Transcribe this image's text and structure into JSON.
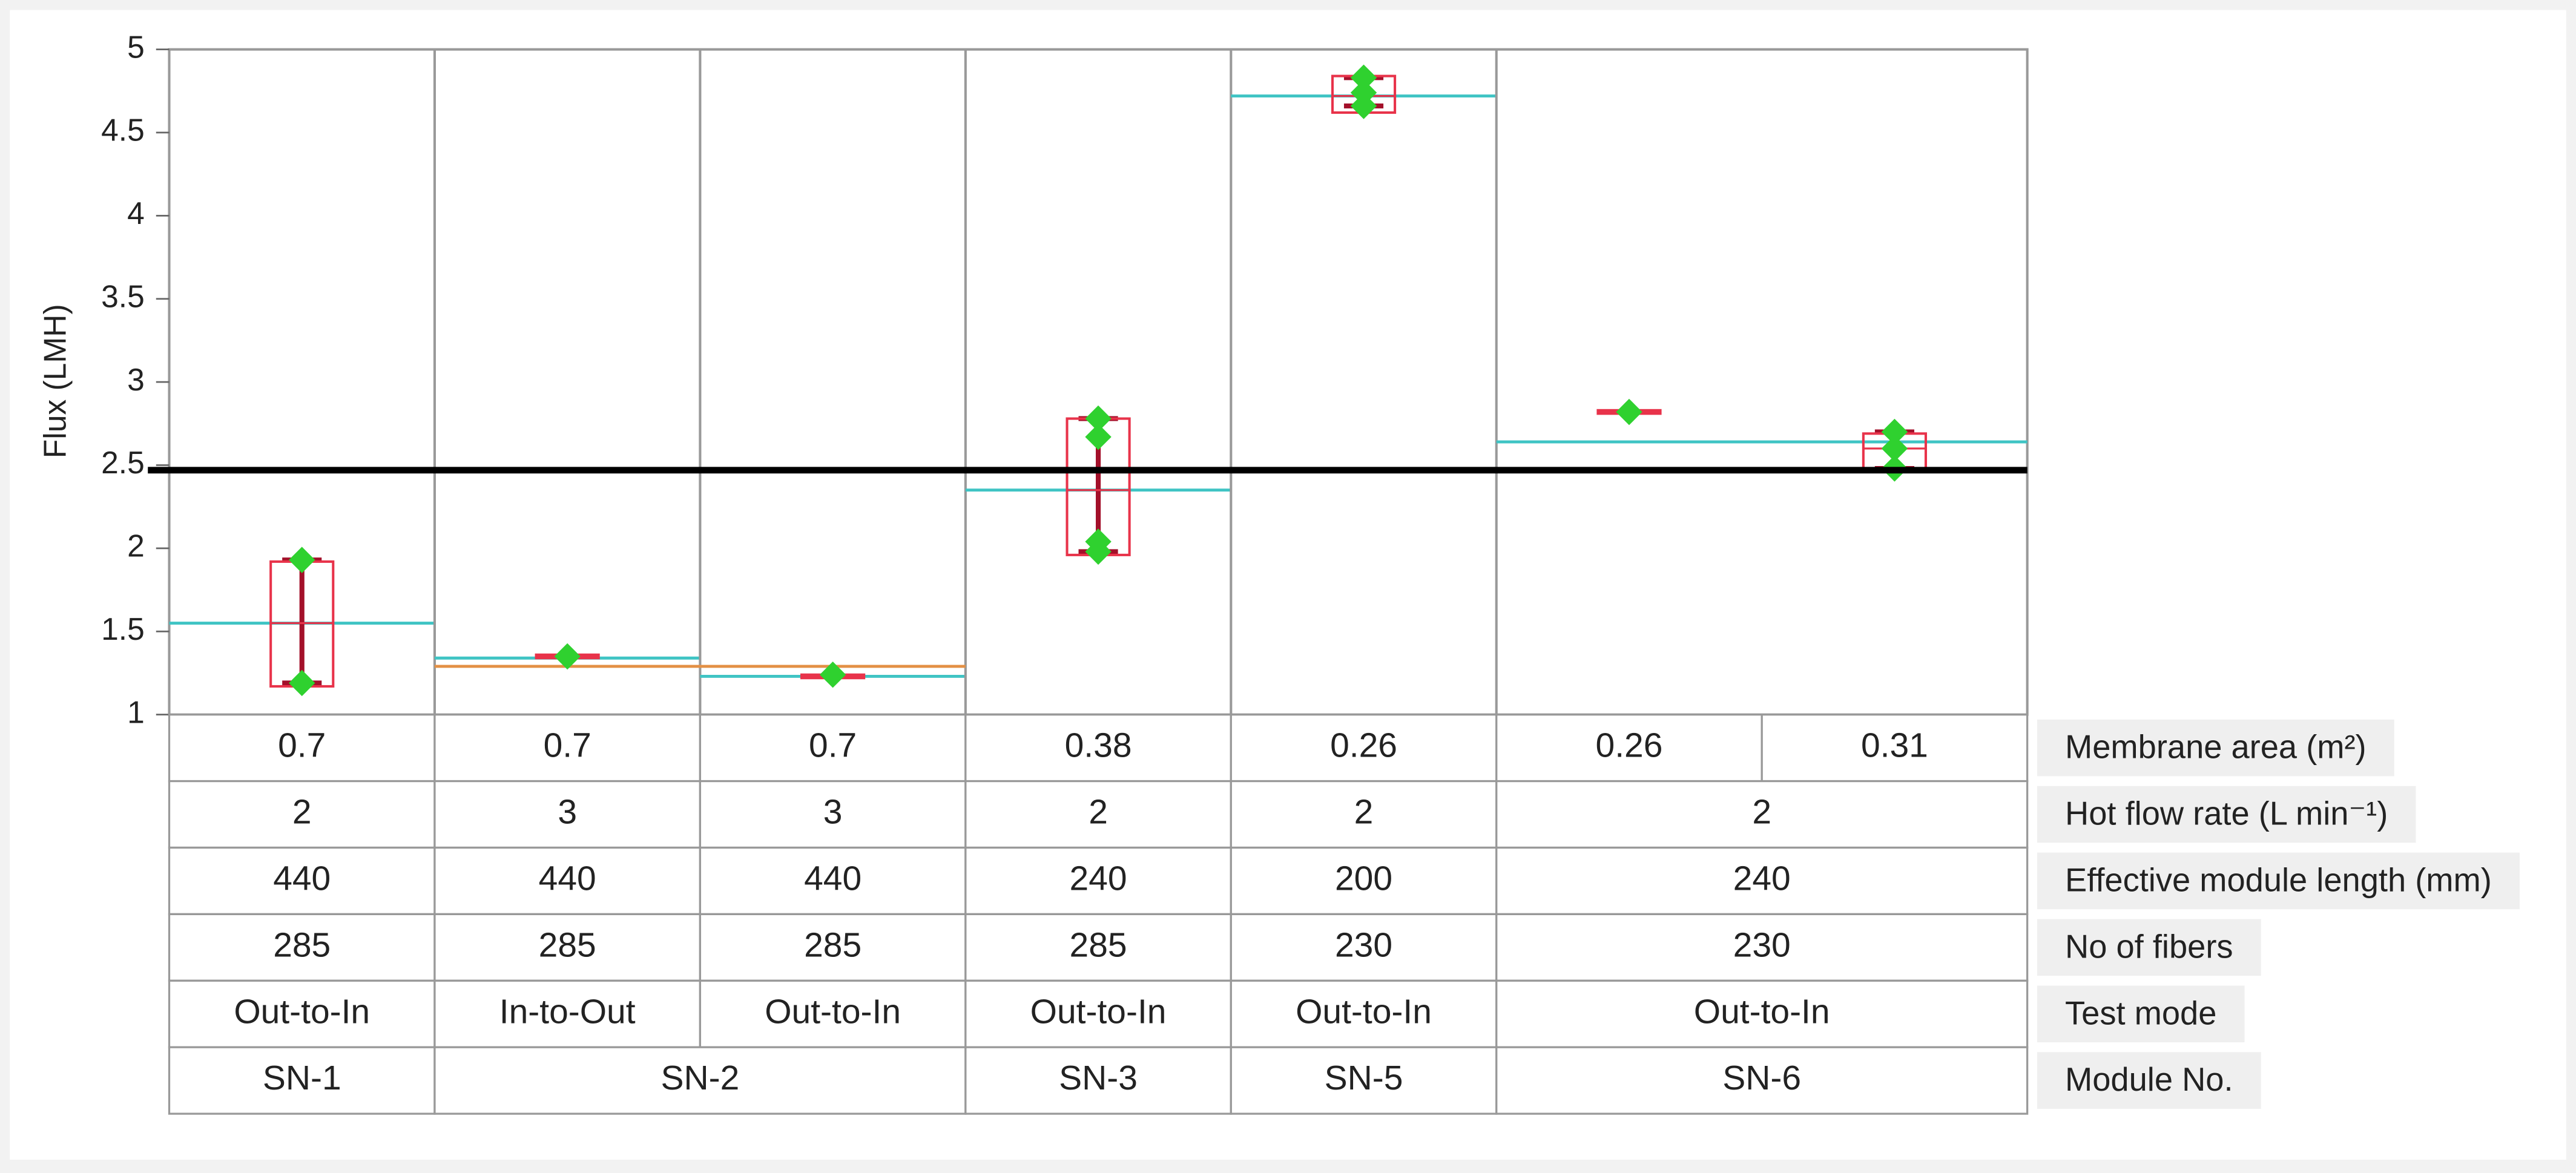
{
  "chart_data": {
    "type": "box",
    "y_label": "Flux (LMH)",
    "ylim": [
      1,
      5
    ],
    "yticks": [
      1,
      1.5,
      2,
      2.5,
      3,
      3.5,
      4,
      4.5,
      5
    ],
    "reference_line": 2.47,
    "box_color": "#e8334a",
    "whisker_color": "#a3102a",
    "point_color": "#2fd12f",
    "mean_color": "#3fc4c4",
    "group_mean_color": "#e39045",
    "boxes": [
      {
        "q1": 1.17,
        "median": 1.55,
        "q3": 1.92,
        "points": [
          1.93,
          1.19
        ]
      },
      {
        "q1": 1.34,
        "median": 1.35,
        "q3": 1.36,
        "points": [
          1.35
        ]
      },
      {
        "q1": 1.22,
        "median": 1.23,
        "q3": 1.24,
        "points": [
          1.24
        ]
      },
      {
        "q1": 1.96,
        "median": 2.35,
        "q3": 2.78,
        "points": [
          2.78,
          2.67,
          2.04,
          1.98
        ]
      },
      {
        "q1": 4.62,
        "median": 4.72,
        "q3": 4.84,
        "points": [
          4.83,
          4.74,
          4.66
        ]
      },
      {
        "q1": 2.81,
        "median": 2.82,
        "q3": 2.83,
        "points": [
          2.82
        ]
      },
      {
        "q1": 2.48,
        "median": 2.6,
        "q3": 2.69,
        "points": [
          2.7,
          2.6,
          2.48
        ]
      }
    ],
    "panels": [
      {
        "columns": 1,
        "mean": 1.55
      },
      {
        "columns": 1,
        "mean": 1.34
      },
      {
        "columns": 1,
        "mean": 1.23
      },
      {
        "columns": 1,
        "mean": 2.35
      },
      {
        "columns": 1,
        "mean": 4.72
      },
      {
        "columns": 2,
        "mean": 2.64
      }
    ],
    "group_means": [
      {
        "start": 1,
        "columns": 2,
        "value": 1.29
      }
    ],
    "table": [
      {
        "label": "Membrane area (m²)",
        "cells": [
          "0.7",
          "0.7",
          "0.7",
          "0.38",
          "0.26",
          "0.26",
          "0.31"
        ],
        "spans": [
          1,
          1,
          1,
          1,
          1,
          1,
          1
        ]
      },
      {
        "label": "Hot flow rate (L min⁻¹)",
        "cells": [
          "2",
          "3",
          "3",
          "2",
          "2",
          "2"
        ],
        "spans": [
          1,
          1,
          1,
          1,
          1,
          2
        ]
      },
      {
        "label": "Effective module length (mm)",
        "cells": [
          "440",
          "440",
          "440",
          "240",
          "200",
          "240"
        ],
        "spans": [
          1,
          1,
          1,
          1,
          1,
          2
        ]
      },
      {
        "label": "No of fibers",
        "cells": [
          "285",
          "285",
          "285",
          "285",
          "230",
          "230"
        ],
        "spans": [
          1,
          1,
          1,
          1,
          1,
          2
        ]
      },
      {
        "label": "Test mode",
        "cells": [
          "Out-to-In",
          "In-to-Out",
          "Out-to-In",
          "Out-to-In",
          "Out-to-In",
          "Out-to-In"
        ],
        "spans": [
          1,
          1,
          1,
          1,
          1,
          2
        ]
      },
      {
        "label": "Module No.",
        "cells": [
          "SN-1",
          "SN-2",
          "SN-3",
          "SN-5",
          "SN-6"
        ],
        "spans": [
          1,
          2,
          1,
          1,
          2
        ]
      }
    ]
  }
}
